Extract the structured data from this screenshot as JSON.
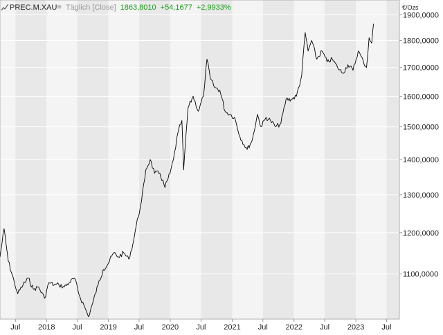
{
  "header": {
    "symbol": "PREC.M.XAU=",
    "interval": "Täglich [Close]",
    "last": "1863,8010",
    "change": "+54,1677",
    "change_pct": "+2,9933%"
  },
  "y_unit": "€/Ozs",
  "colors": {
    "line": "#000000",
    "band_light": "#f4f4f4",
    "band_dark": "#e8e8e8",
    "grid": "#ffffff",
    "text": "#222222",
    "positive": "#1a9a1a",
    "icon": "#555555"
  },
  "chart_data": {
    "type": "line",
    "title": "PREC.M.XAU=",
    "xlabel": "",
    "ylabel": "€/Ozs",
    "x_range": [
      "2017-04-01",
      "2023-09-15"
    ],
    "ylim": [
      1000,
      1960
    ],
    "y_scale": "log",
    "y_ticks": [
      1100,
      1200,
      1300,
      1400,
      1500,
      1600,
      1700,
      1800,
      1900
    ],
    "y_tick_labels": [
      "1100,0000",
      "1200,0000",
      "1300,0000",
      "1400,0000",
      "1500,0000",
      "1600,0000",
      "1700,0000",
      "1800,0000",
      "1900,0000"
    ],
    "x_ticks": [
      {
        "date": "2017-07-01",
        "label": "Jul"
      },
      {
        "date": "2018-01-01",
        "label": "2018"
      },
      {
        "date": "2018-07-01",
        "label": "Jul"
      },
      {
        "date": "2019-01-01",
        "label": "2019"
      },
      {
        "date": "2019-07-01",
        "label": "Jul"
      },
      {
        "date": "2020-01-01",
        "label": "2020"
      },
      {
        "date": "2020-07-01",
        "label": "Jul"
      },
      {
        "date": "2021-01-01",
        "label": "2021"
      },
      {
        "date": "2021-07-01",
        "label": "Jul"
      },
      {
        "date": "2022-01-01",
        "label": "2022"
      },
      {
        "date": "2022-07-01",
        "label": "Jul"
      },
      {
        "date": "2023-01-01",
        "label": "2023"
      },
      {
        "date": "2023-07-01",
        "label": "Jul"
      }
    ],
    "grid": true,
    "legend": "none",
    "series": [
      {
        "name": "PREC.M.XAU=",
        "points": [
          [
            "2017-04-01",
            1140
          ],
          [
            "2017-04-25",
            1210
          ],
          [
            "2017-05-20",
            1130
          ],
          [
            "2017-06-25",
            1080
          ],
          [
            "2017-07-15",
            1055
          ],
          [
            "2017-08-15",
            1075
          ],
          [
            "2017-09-15",
            1090
          ],
          [
            "2017-10-15",
            1065
          ],
          [
            "2017-11-15",
            1070
          ],
          [
            "2017-12-20",
            1045
          ],
          [
            "2018-01-15",
            1080
          ],
          [
            "2018-02-15",
            1075
          ],
          [
            "2018-03-15",
            1075
          ],
          [
            "2018-04-15",
            1070
          ],
          [
            "2018-05-15",
            1080
          ],
          [
            "2018-06-15",
            1090
          ],
          [
            "2018-07-15",
            1050
          ],
          [
            "2018-08-15",
            1025
          ],
          [
            "2018-09-05",
            1005
          ],
          [
            "2018-10-01",
            1035
          ],
          [
            "2018-11-01",
            1075
          ],
          [
            "2018-12-01",
            1110
          ],
          [
            "2019-01-01",
            1125
          ],
          [
            "2019-02-01",
            1150
          ],
          [
            "2019-03-01",
            1140
          ],
          [
            "2019-04-01",
            1150
          ],
          [
            "2019-05-01",
            1135
          ],
          [
            "2019-05-25",
            1170
          ],
          [
            "2019-06-15",
            1220
          ],
          [
            "2019-07-15",
            1280
          ],
          [
            "2019-08-10",
            1370
          ],
          [
            "2019-09-05",
            1400
          ],
          [
            "2019-10-01",
            1360
          ],
          [
            "2019-11-01",
            1360
          ],
          [
            "2019-12-01",
            1320
          ],
          [
            "2019-12-31",
            1360
          ],
          [
            "2020-01-20",
            1400
          ],
          [
            "2020-02-15",
            1480
          ],
          [
            "2020-03-10",
            1520
          ],
          [
            "2020-03-20",
            1370
          ],
          [
            "2020-04-15",
            1560
          ],
          [
            "2020-05-15",
            1600
          ],
          [
            "2020-06-15",
            1550
          ],
          [
            "2020-07-15",
            1600
          ],
          [
            "2020-08-05",
            1730
          ],
          [
            "2020-08-25",
            1660
          ],
          [
            "2020-09-20",
            1630
          ],
          [
            "2020-10-20",
            1620
          ],
          [
            "2020-11-20",
            1550
          ],
          [
            "2020-12-20",
            1540
          ],
          [
            "2021-01-15",
            1530
          ],
          [
            "2021-02-15",
            1470
          ],
          [
            "2021-03-30",
            1430
          ],
          [
            "2021-04-30",
            1460
          ],
          [
            "2021-05-30",
            1540
          ],
          [
            "2021-06-20",
            1500
          ],
          [
            "2021-07-20",
            1530
          ],
          [
            "2021-08-15",
            1520
          ],
          [
            "2021-09-15",
            1500
          ],
          [
            "2021-10-15",
            1510
          ],
          [
            "2021-11-15",
            1590
          ],
          [
            "2021-12-15",
            1590
          ],
          [
            "2022-01-15",
            1600
          ],
          [
            "2022-02-15",
            1670
          ],
          [
            "2022-03-08",
            1830
          ],
          [
            "2022-03-25",
            1760
          ],
          [
            "2022-04-15",
            1800
          ],
          [
            "2022-05-15",
            1730
          ],
          [
            "2022-06-15",
            1760
          ],
          [
            "2022-07-15",
            1720
          ],
          [
            "2022-08-15",
            1730
          ],
          [
            "2022-09-15",
            1700
          ],
          [
            "2022-10-15",
            1680
          ],
          [
            "2022-11-15",
            1710
          ],
          [
            "2022-12-15",
            1690
          ],
          [
            "2023-01-15",
            1760
          ],
          [
            "2023-02-15",
            1720
          ],
          [
            "2023-03-05",
            1700
          ],
          [
            "2023-03-20",
            1810
          ],
          [
            "2023-04-05",
            1790
          ],
          [
            "2023-04-15",
            1864
          ]
        ]
      }
    ]
  }
}
